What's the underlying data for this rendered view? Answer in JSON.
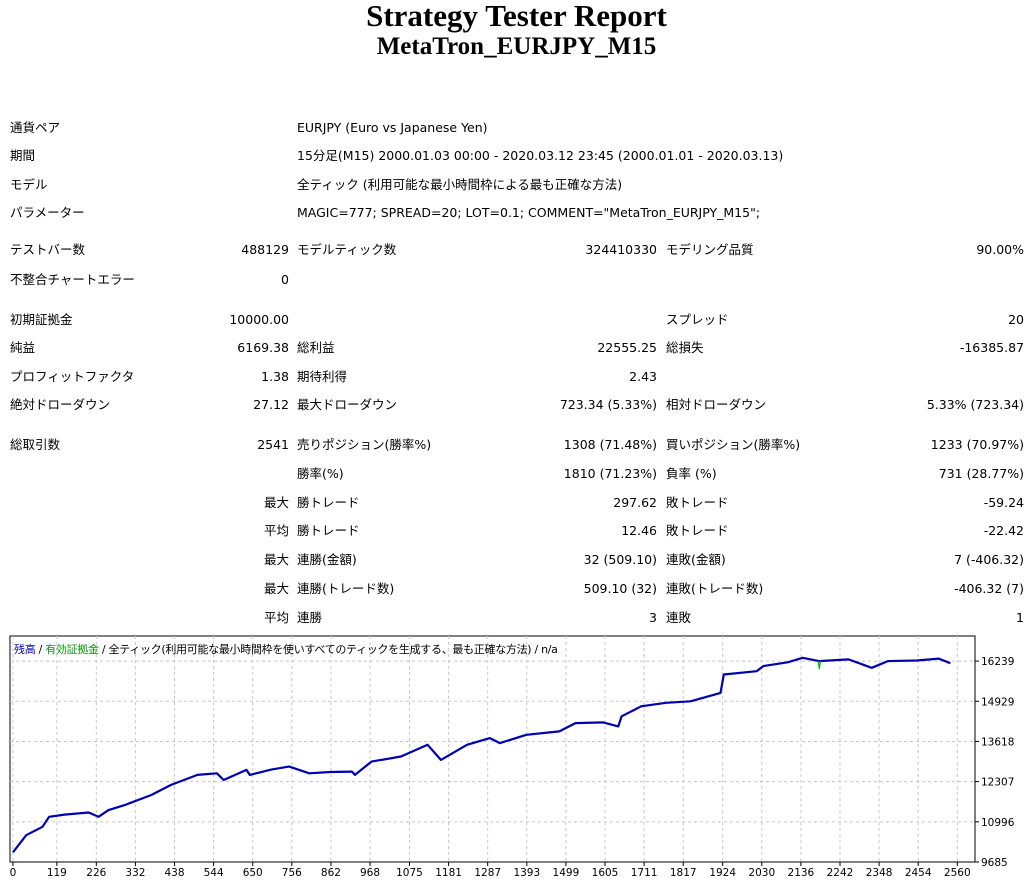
{
  "report": {
    "title": "Strategy Tester Report",
    "subtitle": "MetaTron_EURJPY_M15"
  },
  "info_rows": [
    {
      "label": "通貨ペア",
      "value": "EURJPY (Euro vs Japanese Yen)"
    },
    {
      "label": "期間",
      "value": "15分足(M15) 2000.01.03 00:00 - 2020.03.12 23:45 (2000.01.01 - 2020.03.13)"
    },
    {
      "label": "モデル",
      "value": "全ティック (利用可能な最小時間枠による最も正確な方法)"
    },
    {
      "label": "パラメーター",
      "value": "MAGIC=777; SPREAD=20; LOT=0.1; COMMENT=\"MetaTron_EURJPY_M15\";"
    }
  ],
  "stat_rows": [
    [
      "テストバー数",
      "488129",
      "モデルティック数",
      "324410330",
      "モデリング品質",
      "90.00%"
    ],
    [
      "不整合チャートエラー",
      "0",
      "",
      "",
      "",
      ""
    ],
    [
      "初期証拠金",
      "10000.00",
      "",
      "",
      "スプレッド",
      "20"
    ],
    [
      "純益",
      "6169.38",
      "総利益",
      "22555.25",
      "総損失",
      "-16385.87"
    ],
    [
      "プロフィットファクタ",
      "1.38",
      "期待利得",
      "2.43",
      "",
      ""
    ],
    [
      "絶対ドローダウン",
      "27.12",
      "最大ドローダウン",
      "723.34 (5.33%)",
      "相対ドローダウン",
      "5.33% (723.34)"
    ],
    [
      "総取引数",
      "2541",
      "売りポジション(勝率%)",
      "1308 (71.48%)",
      "買いポジション(勝率%)",
      "1233 (70.97%)"
    ],
    [
      "",
      "",
      "勝率(%)",
      "1810 (71.23%)",
      "負率 (%)",
      "731 (28.77%)"
    ],
    [
      "",
      "最大",
      "勝トレード",
      "297.62",
      "敗トレード",
      "-59.24"
    ],
    [
      "",
      "平均",
      "勝トレード",
      "12.46",
      "敗トレード",
      "-22.42"
    ],
    [
      "",
      "最大",
      "連勝(金額)",
      "32 (509.10)",
      "連敗(金額)",
      "7 (-406.32)"
    ],
    [
      "",
      "最大",
      "連勝(トレード数)",
      "509.10 (32)",
      "連敗(トレード数)",
      "-406.32 (7)"
    ],
    [
      "",
      "平均",
      "連勝",
      "3",
      "連敗",
      "1"
    ]
  ],
  "chart_data": {
    "type": "line",
    "legend": {
      "balance": "残高",
      "equity": "有効証拠金",
      "model": "全ティック(利用可能な最小時間枠を使いすべてのティックを生成する、最も正確な方法)",
      "extra": "n/a",
      "sep": "/",
      "placement": "top-left"
    },
    "colors": {
      "balance": "#0000b0",
      "equity": "#00b000",
      "grid": "#c8c8c8"
    },
    "grid": true,
    "xlim": [
      -8,
      2608
    ],
    "ylim": [
      9685,
      17058
    ],
    "x_ticks": [
      0,
      119,
      226,
      332,
      438,
      544,
      650,
      756,
      862,
      968,
      1075,
      1181,
      1287,
      1393,
      1499,
      1605,
      1711,
      1817,
      1924,
      2030,
      2136,
      2242,
      2348,
      2454,
      2560
    ],
    "y_ticks": [
      9685,
      10996,
      12307,
      13618,
      14929,
      16239
    ],
    "series": [
      {
        "key": "balance",
        "points": [
          [
            0,
            10000
          ],
          [
            36,
            10559
          ],
          [
            80,
            10832
          ],
          [
            98,
            11160
          ],
          [
            140,
            11230
          ],
          [
            178,
            11269
          ],
          [
            205,
            11300
          ],
          [
            232,
            11160
          ],
          [
            259,
            11378
          ],
          [
            303,
            11542
          ],
          [
            375,
            11870
          ],
          [
            428,
            12197
          ],
          [
            500,
            12525
          ],
          [
            553,
            12580
          ],
          [
            571,
            12361
          ],
          [
            633,
            12689
          ],
          [
            642,
            12525
          ],
          [
            700,
            12700
          ],
          [
            749,
            12798
          ],
          [
            803,
            12580
          ],
          [
            860,
            12620
          ],
          [
            919,
            12634
          ],
          [
            927,
            12525
          ],
          [
            972,
            12962
          ],
          [
            1052,
            13126
          ],
          [
            1124,
            13508
          ],
          [
            1160,
            13017
          ],
          [
            1231,
            13508
          ],
          [
            1293,
            13727
          ],
          [
            1320,
            13563
          ],
          [
            1392,
            13836
          ],
          [
            1481,
            13945
          ],
          [
            1525,
            14218
          ],
          [
            1600,
            14240
          ],
          [
            1641,
            14109
          ],
          [
            1650,
            14437
          ],
          [
            1703,
            14764
          ],
          [
            1770,
            14880
          ],
          [
            1837,
            14928
          ],
          [
            1918,
            15201
          ],
          [
            1927,
            15802
          ],
          [
            2016,
            15911
          ],
          [
            2034,
            16075
          ],
          [
            2100,
            16200
          ],
          [
            2141,
            16348
          ],
          [
            2185,
            16239
          ],
          [
            2265,
            16294
          ],
          [
            2328,
            16021
          ],
          [
            2372,
            16239
          ],
          [
            2450,
            16260
          ],
          [
            2510,
            16320
          ],
          [
            2541,
            16169
          ]
        ]
      },
      {
        "key": "equity",
        "points": [
          [
            2183,
            16239
          ],
          [
            2186,
            15990
          ],
          [
            2189,
            16239
          ]
        ]
      }
    ]
  }
}
